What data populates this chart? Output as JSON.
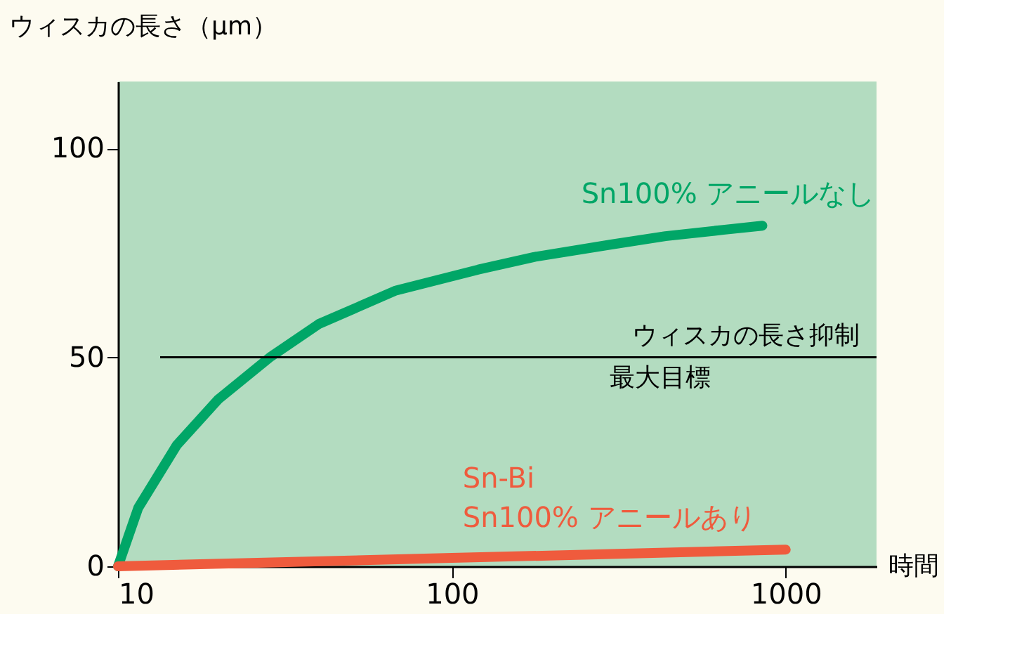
{
  "chart_data": {
    "type": "line",
    "ylabel": "ウィスカの長さ（μm）",
    "xlabel": "時間",
    "log": "x",
    "xlim": [
      10,
      1870
    ],
    "xticks": [
      10,
      100,
      1000
    ],
    "ylim": [
      0,
      116
    ],
    "yticks": [
      0,
      50,
      100
    ],
    "grid": false,
    "legend": false,
    "line_style": "solid",
    "series": [
      {
        "name": "Sn100% アニールなし",
        "color": "#00a667",
        "x": [
          10,
          11.5,
          15,
          20,
          28.5,
          40,
          68,
          120,
          176,
          300,
          436,
          650,
          851
        ],
        "values": [
          0,
          14,
          29,
          40,
          50,
          58,
          66,
          71,
          74,
          77,
          79,
          80.5,
          81.5
        ]
      },
      {
        "name": "Sn-Bi\nSn100% アニールあり",
        "color": "#ef5b3d",
        "x": [
          10,
          100,
          1000
        ],
        "values": [
          0,
          2,
          4
        ]
      }
    ],
    "ref_lines": [
      {
        "axis": "y",
        "value": 50,
        "label": [
          "ウィスカの長さ抑制",
          "最大目標"
        ],
        "color": "#000000",
        "line_style": "solid"
      }
    ]
  }
}
